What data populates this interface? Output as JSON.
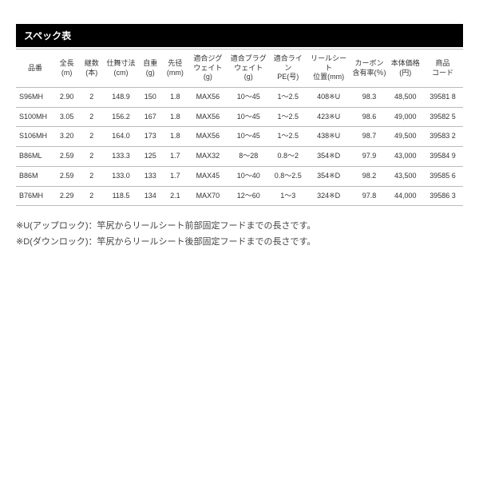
{
  "title": "スペック表",
  "columns": [
    "品番",
    "全長\n(m)",
    "継数\n(本)",
    "仕舞寸法\n(cm)",
    "自重\n(g)",
    "先径\n(mm)",
    "適合ジグ\nウェイト(g)",
    "適合プラグ\nウェイト(g)",
    "適合ライン\nPE(号)",
    "リールシート\n位置(mm)",
    "カーボン\n含有率(％)",
    "本体価格\n(円)",
    "商品\nコード"
  ],
  "rows": [
    [
      "S96MH",
      "2.90",
      "2",
      "148.9",
      "150",
      "1.8",
      "MAX56",
      "10～45",
      "1～2.5",
      "408※U",
      "98.3",
      "48,500",
      "39581 8"
    ],
    [
      "S100MH",
      "3.05",
      "2",
      "156.2",
      "167",
      "1.8",
      "MAX56",
      "10～45",
      "1～2.5",
      "423※U",
      "98.6",
      "49,000",
      "39582 5"
    ],
    [
      "S106MH",
      "3.20",
      "2",
      "164.0",
      "173",
      "1.8",
      "MAX56",
      "10～45",
      "1～2.5",
      "438※U",
      "98.7",
      "49,500",
      "39583 2"
    ],
    [
      "B86ML",
      "2.59",
      "2",
      "133.3",
      "125",
      "1.7",
      "MAX32",
      "8～28",
      "0.8～2",
      "354※D",
      "97.9",
      "43,000",
      "39584 9"
    ],
    [
      "B86M",
      "2.59",
      "2",
      "133.0",
      "133",
      "1.7",
      "MAX45",
      "10～40",
      "0.8～2.5",
      "354※D",
      "98.2",
      "43,500",
      "39585 6"
    ],
    [
      "B76MH",
      "2.29",
      "2",
      "118.5",
      "134",
      "2.1",
      "MAX70",
      "12～60",
      "1～3",
      "324※D",
      "97.8",
      "44,000",
      "39586 3"
    ]
  ],
  "notes": [
    "※U(アップロック)：竿尻からリールシート前部固定フードまでの長さです。",
    "※D(ダウンロック)：竿尻からリールシート後部固定フードまでの長さです。"
  ]
}
